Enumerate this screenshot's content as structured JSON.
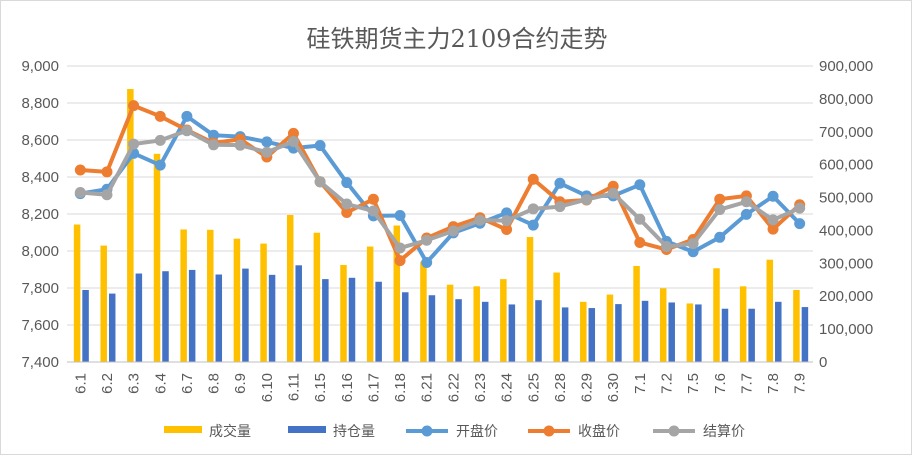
{
  "chart_data": {
    "type": "bar+line",
    "title": "硅铁期货主力2109合约走势",
    "categories": [
      "6.1",
      "6.2",
      "6.3",
      "6.4",
      "6.7",
      "6.8",
      "6.9",
      "6.10",
      "6.11",
      "6.15",
      "6.16",
      "6.17",
      "6.18",
      "6.21",
      "6.22",
      "6.23",
      "6.24",
      "6.25",
      "6.28",
      "6.29",
      "6.30",
      "7.1",
      "7.2",
      "7.5",
      "7.6",
      "7.7",
      "7.8",
      "7.9"
    ],
    "left_axis": {
      "min": 7400,
      "max": 9000,
      "step": 200,
      "ticks": [
        "7,400",
        "7,600",
        "7,800",
        "8,000",
        "8,200",
        "8,400",
        "8,600",
        "8,800",
        "9,000"
      ]
    },
    "right_axis": {
      "min": 0,
      "max": 900000,
      "step": 100000,
      "ticks": [
        "0",
        "100,000",
        "200,000",
        "300,000",
        "400,000",
        "500,000",
        "600,000",
        "700,000",
        "800,000",
        "900,000"
      ]
    },
    "grid": true,
    "legend_position": "bottom",
    "bar_series": [
      {
        "name": "成交量",
        "color": "#FFC000",
        "values": [
          418000,
          354000,
          830000,
          633000,
          403000,
          402000,
          375000,
          360000,
          447000,
          393000,
          295000,
          351000,
          415000,
          305000,
          235000,
          230000,
          252000,
          380000,
          272000,
          183000,
          205000,
          292000,
          224000,
          178000,
          285000,
          230000,
          311000,
          219000
        ]
      },
      {
        "name": "持仓量",
        "color": "#4472C4",
        "values": [
          219000,
          208000,
          269000,
          276000,
          280000,
          266000,
          284000,
          265000,
          294000,
          252000,
          256000,
          244000,
          212000,
          203000,
          191000,
          183000,
          175000,
          188000,
          166000,
          164000,
          176000,
          186000,
          181000,
          175000,
          162000,
          162000,
          183000,
          167000
        ]
      }
    ],
    "line_series": [
      {
        "name": "开盘价",
        "color": "#5B9BD5",
        "values": [
          8310,
          8334,
          8528,
          8464,
          8728,
          8626,
          8618,
          8590,
          8556,
          8570,
          8370,
          8190,
          8192,
          7938,
          8098,
          8150,
          8206,
          8140,
          8366,
          8298,
          8298,
          8358,
          8052,
          7996,
          8074,
          8198,
          8296,
          8148
        ]
      },
      {
        "name": "收盘价",
        "color": "#ED7D31",
        "values": [
          8438,
          8428,
          8786,
          8728,
          8654,
          8584,
          8604,
          8508,
          8636,
          8374,
          8208,
          8280,
          7948,
          8070,
          8132,
          8180,
          8116,
          8388,
          8266,
          8276,
          8350,
          8046,
          8008,
          8062,
          8280,
          8298,
          8118,
          8250
        ]
      },
      {
        "name": "结算价",
        "color": "#A5A5A5",
        "values": [
          8316,
          8304,
          8578,
          8598,
          8650,
          8574,
          8572,
          8534,
          8592,
          8374,
          8254,
          8216,
          8016,
          8058,
          8108,
          8166,
          8164,
          8228,
          8240,
          8278,
          8312,
          8172,
          8024,
          8040,
          8224,
          8266,
          8168,
          8232
        ]
      }
    ]
  }
}
